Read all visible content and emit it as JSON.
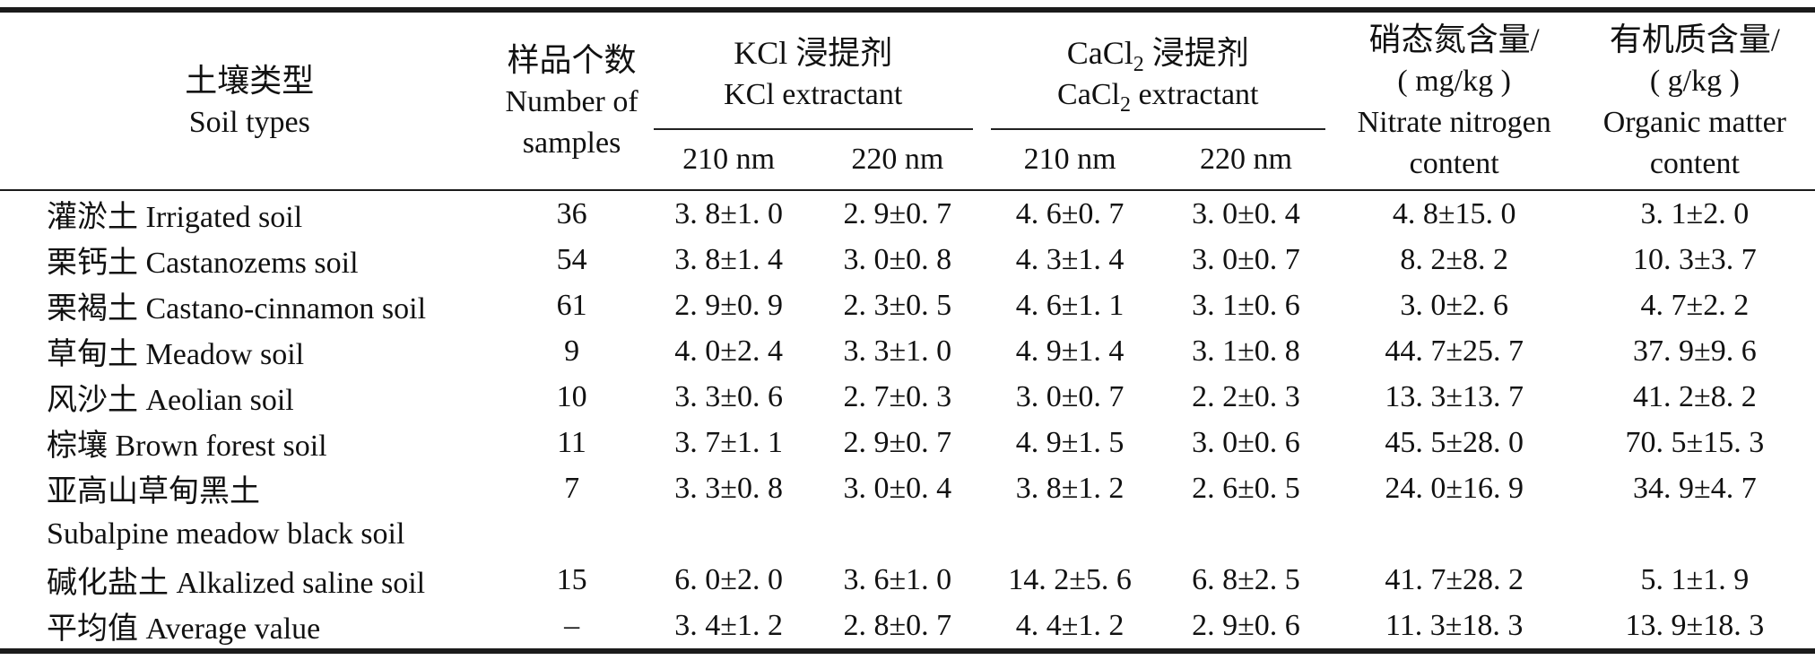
{
  "header": {
    "soil_types_zh": "土壤类型",
    "soil_types_en": "Soil types",
    "samples_zh": "样品个数",
    "samples_en_line1": "Number of",
    "samples_en_line2": "samples",
    "kcl_zh": "KCl 浸提剂",
    "kcl_en": "KCl extractant",
    "cacl2_base": "CaCl",
    "cacl2_sub": "2",
    "cacl2_zh_rest": " 浸提剂",
    "cacl2_en_rest": " extractant",
    "kcl_nm210": "210 nm",
    "kcl_nm220": "220 nm",
    "cacl2_nm210": "210 nm",
    "cacl2_nm220": "220 nm",
    "nitrate_line1": "硝态氮含量/",
    "nitrate_line2": "( mg/kg )",
    "nitrate_line3": "Nitrate nitrogen",
    "nitrate_line4": "content",
    "organic_line1": "有机质含量/",
    "organic_line2": "( g/kg )",
    "organic_line3": "Organic matter",
    "organic_line4": "content"
  },
  "rows": [
    {
      "soil": "灌淤土 Irrigated soil",
      "n": "36",
      "kcl210": "3. 8±1. 0",
      "kcl220": "2. 9±0. 7",
      "cacl210": "4. 6±0. 7",
      "cacl220": "3. 0±0. 4",
      "nitrate": "4. 8±15. 0",
      "organic": "3. 1±2. 0"
    },
    {
      "soil": "栗钙土 Castanozems soil",
      "n": "54",
      "kcl210": "3. 8±1. 4",
      "kcl220": "3. 0±0. 8",
      "cacl210": "4. 3±1. 4",
      "cacl220": "3. 0±0. 7",
      "nitrate": "8. 2±8. 2",
      "organic": "10. 3±3. 7"
    },
    {
      "soil": "栗褐土 Castano-cinnamon soil",
      "n": "61",
      "kcl210": "2. 9±0. 9",
      "kcl220": "2. 3±0. 5",
      "cacl210": "4. 6±1. 1",
      "cacl220": "3. 1±0. 6",
      "nitrate": "3. 0±2. 6",
      "organic": "4. 7±2. 2"
    },
    {
      "soil": "草甸土 Meadow soil",
      "n": "9",
      "kcl210": "4. 0±2. 4",
      "kcl220": "3. 3±1. 0",
      "cacl210": "4. 9±1. 4",
      "cacl220": "3. 1±0. 8",
      "nitrate": "44. 7±25. 7",
      "organic": "37. 9±9. 6"
    },
    {
      "soil": "风沙土 Aeolian soil",
      "n": "10",
      "kcl210": "3. 3±0. 6",
      "kcl220": "2. 7±0. 3",
      "cacl210": "3. 0±0. 7",
      "cacl220": "2. 2±0. 3",
      "nitrate": "13. 3±13. 7",
      "organic": "41. 2±8. 2"
    },
    {
      "soil": "棕壤 Brown forest soil",
      "n": "11",
      "kcl210": "3. 7±1. 1",
      "kcl220": "2. 9±0. 7",
      "cacl210": "4. 9±1. 5",
      "cacl220": "3. 0±0. 6",
      "nitrate": "45. 5±28. 0",
      "organic": "70. 5±15. 3"
    },
    {
      "soil": "亚高山草甸黑土",
      "n": "7",
      "kcl210": "3. 3±0. 8",
      "kcl220": "3. 0±0. 4",
      "cacl210": "3. 8±1. 2",
      "cacl220": "2. 6±0. 5",
      "nitrate": "24. 0±16. 9",
      "organic": "34. 9±4. 7"
    },
    {
      "soil": "Subalpine meadow black soil",
      "n": "",
      "kcl210": "",
      "kcl220": "",
      "cacl210": "",
      "cacl220": "",
      "nitrate": "",
      "organic": ""
    },
    {
      "soil": "碱化盐土 Alkalized saline soil",
      "n": "15",
      "kcl210": "6. 0±2. 0",
      "kcl220": "3. 6±1. 0",
      "cacl210": "14. 2±5. 6",
      "cacl220": "6. 8±2. 5",
      "nitrate": "41. 7±28. 2",
      "organic": "5. 1±1. 9"
    },
    {
      "soil": "平均值 Average value",
      "n": "–",
      "kcl210": "3. 4±1. 2",
      "kcl220": "2. 8±0. 7",
      "cacl210": "4. 4±1. 2",
      "cacl220": "2. 9±0. 6",
      "nitrate": "11. 3±18. 3",
      "organic": "13. 9±18. 3"
    }
  ]
}
